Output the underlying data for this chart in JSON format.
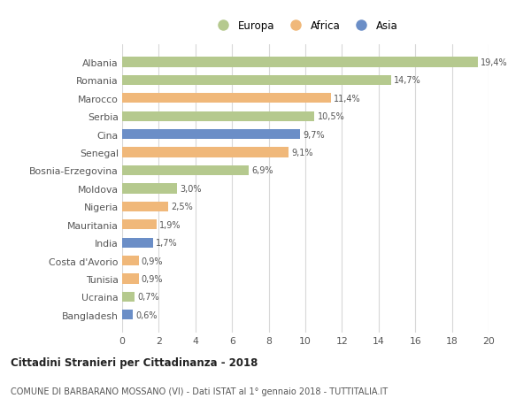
{
  "categories": [
    "Albania",
    "Romania",
    "Marocco",
    "Serbia",
    "Cina",
    "Senegal",
    "Bosnia-Erzegovina",
    "Moldova",
    "Nigeria",
    "Mauritania",
    "India",
    "Costa d'Avorio",
    "Tunisia",
    "Ucraina",
    "Bangladesh"
  ],
  "values": [
    19.4,
    14.7,
    11.4,
    10.5,
    9.7,
    9.1,
    6.9,
    3.0,
    2.5,
    1.9,
    1.7,
    0.9,
    0.9,
    0.7,
    0.6
  ],
  "labels": [
    "19,4%",
    "14,7%",
    "11,4%",
    "10,5%",
    "9,7%",
    "9,1%",
    "6,9%",
    "3,0%",
    "2,5%",
    "1,9%",
    "1,7%",
    "0,9%",
    "0,9%",
    "0,7%",
    "0,6%"
  ],
  "continents": [
    "Europa",
    "Europa",
    "Africa",
    "Europa",
    "Asia",
    "Africa",
    "Europa",
    "Europa",
    "Africa",
    "Africa",
    "Asia",
    "Africa",
    "Africa",
    "Europa",
    "Asia"
  ],
  "colors": {
    "Europa": "#b5c98e",
    "Africa": "#f0b87a",
    "Asia": "#6b8ec7"
  },
  "legend_order": [
    "Europa",
    "Africa",
    "Asia"
  ],
  "xlim": [
    0,
    20
  ],
  "xticks": [
    0,
    2,
    4,
    6,
    8,
    10,
    12,
    14,
    16,
    18,
    20
  ],
  "title": "Cittadini Stranieri per Cittadinanza - 2018",
  "subtitle": "COMUNE DI BARBARANO MOSSANO (VI) - Dati ISTAT al 1° gennaio 2018 - TUTTITALIA.IT",
  "bg_color": "#ffffff",
  "grid_color": "#d8d8d8",
  "bar_height": 0.55
}
